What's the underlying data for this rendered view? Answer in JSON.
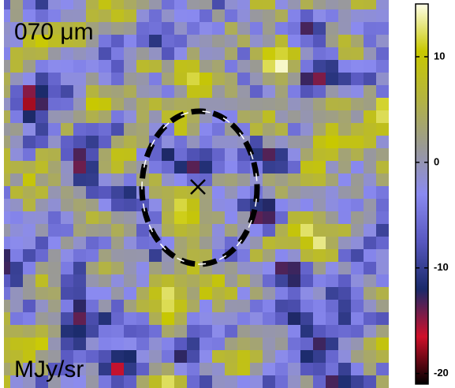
{
  "title": "070 μm",
  "unit": "MJy/sr",
  "colorbar": {
    "lim": [
      -21,
      15
    ],
    "ticks": [
      -20,
      -10,
      0,
      10
    ],
    "colors": [
      "#000000",
      "#d0102a",
      "#1a2a6a",
      "#5858c0",
      "#8a8af0",
      "#9a9a94",
      "#b4b440",
      "#c8c800",
      "#ffffe8"
    ]
  }
}
